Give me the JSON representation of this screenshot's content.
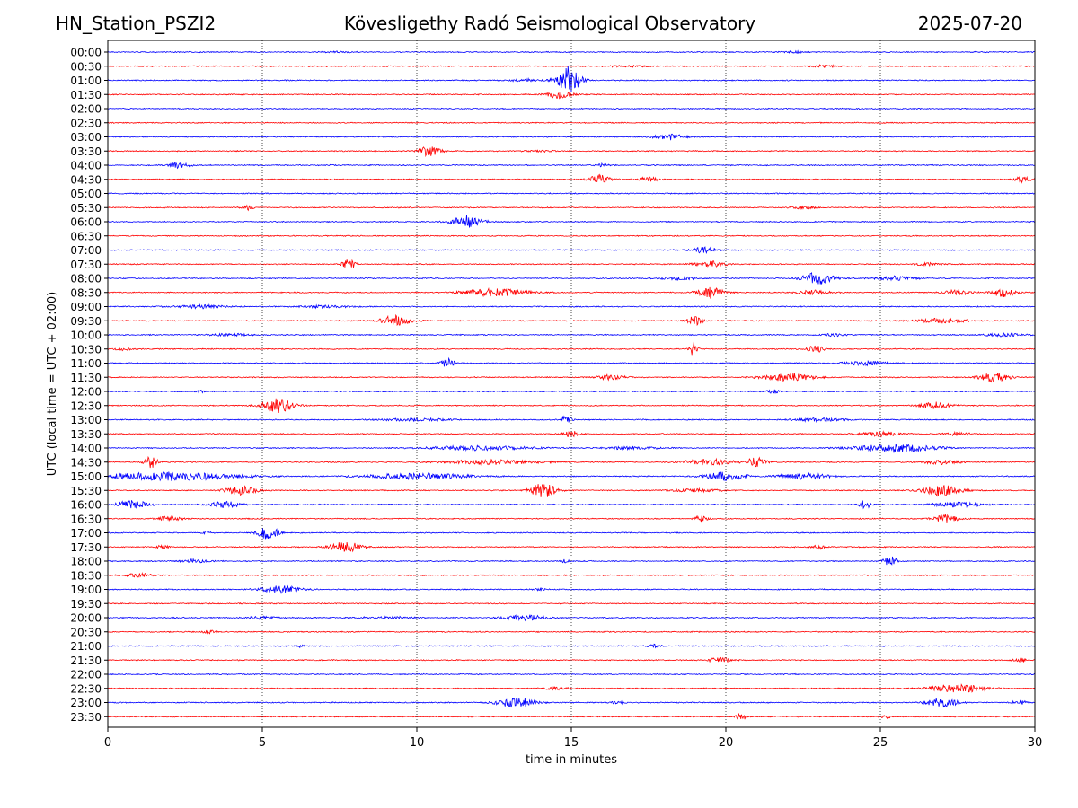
{
  "header": {
    "station": "HN_Station_PSZI2",
    "observatory": "Kövesligethy Radó Seismological Observatory",
    "date": "2025-07-20"
  },
  "chart_data": {
    "type": "line",
    "title": "Kövesligethy Radó Seismological Observatory",
    "xlabel": "time in minutes",
    "ylabel": "UTC (local time = UTC + 02:00)",
    "xlim": [
      0,
      30
    ],
    "xticks": [
      "0",
      "5",
      "10",
      "15",
      "20",
      "25",
      "30"
    ],
    "xtick_values": [
      0,
      5,
      10,
      15,
      20,
      25,
      30
    ],
    "vertical_gridlines": [
      5,
      10,
      15,
      20,
      25
    ],
    "grid": "vertical dotted",
    "colors": {
      "even_row": "#0000ff",
      "odd_row": "#ff0000"
    },
    "rows": [
      {
        "label": "00:00",
        "color": "blue",
        "events": [
          [
            22.2,
            0.8,
            0.06
          ],
          [
            7.5,
            1.0,
            0.04
          ]
        ]
      },
      {
        "label": "00:30",
        "color": "red",
        "events": [
          [
            23.2,
            1.0,
            0.08
          ],
          [
            16.8,
            1.5,
            0.05
          ]
        ]
      },
      {
        "label": "01:00",
        "color": "blue",
        "events": [
          [
            14.9,
            0.9,
            1.0
          ],
          [
            13.5,
            1.0,
            0.1
          ]
        ]
      },
      {
        "label": "01:30",
        "color": "red",
        "events": [
          [
            14.6,
            1.0,
            0.25
          ]
        ]
      },
      {
        "label": "02:00",
        "color": "blue",
        "events": []
      },
      {
        "label": "02:30",
        "color": "red",
        "events": []
      },
      {
        "label": "03:00",
        "color": "blue",
        "events": [
          [
            18.2,
            1.2,
            0.2
          ]
        ]
      },
      {
        "label": "03:30",
        "color": "red",
        "events": [
          [
            10.4,
            0.8,
            0.35
          ],
          [
            14.0,
            1.2,
            0.05
          ]
        ]
      },
      {
        "label": "04:00",
        "color": "blue",
        "events": [
          [
            2.3,
            0.8,
            0.2
          ],
          [
            16.0,
            0.5,
            0.1
          ]
        ]
      },
      {
        "label": "04:30",
        "color": "red",
        "events": [
          [
            15.9,
            0.8,
            0.3
          ],
          [
            17.5,
            0.8,
            0.15
          ],
          [
            29.6,
            0.6,
            0.2
          ]
        ]
      },
      {
        "label": "05:00",
        "color": "blue",
        "events": []
      },
      {
        "label": "05:30",
        "color": "red",
        "events": [
          [
            4.5,
            0.4,
            0.2
          ],
          [
            22.5,
            1.0,
            0.08
          ]
        ]
      },
      {
        "label": "06:00",
        "color": "blue",
        "events": [
          [
            11.6,
            1.2,
            0.45
          ]
        ]
      },
      {
        "label": "06:30",
        "color": "red",
        "events": []
      },
      {
        "label": "07:00",
        "color": "blue",
        "events": [
          [
            19.3,
            1.0,
            0.2
          ]
        ]
      },
      {
        "label": "07:30",
        "color": "red",
        "events": [
          [
            7.8,
            0.5,
            0.35
          ],
          [
            19.5,
            1.2,
            0.2
          ],
          [
            26.5,
            1.0,
            0.08
          ]
        ]
      },
      {
        "label": "08:00",
        "color": "blue",
        "events": [
          [
            23.0,
            1.2,
            0.45
          ],
          [
            25.5,
            1.5,
            0.15
          ],
          [
            18.5,
            1.5,
            0.1
          ]
        ]
      },
      {
        "label": "08:30",
        "color": "red",
        "events": [
          [
            12.5,
            2.5,
            0.25
          ],
          [
            19.5,
            1.0,
            0.35
          ],
          [
            22.8,
            1.2,
            0.15
          ],
          [
            27.5,
            1.0,
            0.2
          ],
          [
            29.0,
            1.0,
            0.3
          ]
        ]
      },
      {
        "label": "09:00",
        "color": "blue",
        "events": [
          [
            3.0,
            2.0,
            0.12
          ],
          [
            7.0,
            2.0,
            0.08
          ]
        ]
      },
      {
        "label": "09:30",
        "color": "red",
        "events": [
          [
            9.3,
            1.2,
            0.35
          ],
          [
            19.0,
            0.6,
            0.3
          ],
          [
            27.0,
            2.0,
            0.15
          ]
        ]
      },
      {
        "label": "10:00",
        "color": "blue",
        "events": [
          [
            4.0,
            1.5,
            0.08
          ],
          [
            23.5,
            1.0,
            0.08
          ],
          [
            29.0,
            1.5,
            0.1
          ]
        ]
      },
      {
        "label": "10:30",
        "color": "red",
        "events": [
          [
            18.95,
            0.3,
            0.5
          ],
          [
            22.9,
            0.6,
            0.25
          ],
          [
            0.5,
            0.6,
            0.1
          ]
        ]
      },
      {
        "label": "11:00",
        "color": "blue",
        "events": [
          [
            11.0,
            0.5,
            0.3
          ],
          [
            24.5,
            1.5,
            0.15
          ]
        ]
      },
      {
        "label": "11:30",
        "color": "red",
        "events": [
          [
            16.3,
            1.0,
            0.2
          ],
          [
            22.0,
            2.0,
            0.25
          ],
          [
            28.7,
            1.2,
            0.3
          ]
        ]
      },
      {
        "label": "12:00",
        "color": "blue",
        "events": [
          [
            21.5,
            0.5,
            0.15
          ],
          [
            3.0,
            0.4,
            0.08
          ]
        ]
      },
      {
        "label": "12:30",
        "color": "red",
        "events": [
          [
            5.5,
            1.2,
            0.5
          ],
          [
            26.8,
            1.2,
            0.25
          ]
        ]
      },
      {
        "label": "13:00",
        "color": "blue",
        "events": [
          [
            14.8,
            0.5,
            0.25
          ],
          [
            10.0,
            3.0,
            0.08
          ],
          [
            23.0,
            2.0,
            0.1
          ]
        ]
      },
      {
        "label": "13:30",
        "color": "red",
        "events": [
          [
            15.0,
            0.6,
            0.2
          ],
          [
            25.0,
            1.5,
            0.15
          ],
          [
            27.5,
            1.0,
            0.1
          ]
        ]
      },
      {
        "label": "14:00",
        "color": "blue",
        "events": [
          [
            12.0,
            4.0,
            0.15
          ],
          [
            25.5,
            3.0,
            0.3
          ],
          [
            17.0,
            2.0,
            0.1
          ]
        ]
      },
      {
        "label": "14:30",
        "color": "red",
        "events": [
          [
            1.4,
            0.5,
            0.4
          ],
          [
            12.5,
            4.0,
            0.15
          ],
          [
            19.5,
            2.0,
            0.2
          ],
          [
            21.0,
            0.8,
            0.3
          ],
          [
            27.0,
            1.5,
            0.15
          ]
        ]
      },
      {
        "label": "15:00",
        "color": "blue",
        "events": [
          [
            2.0,
            5.0,
            0.3
          ],
          [
            10.0,
            4.0,
            0.2
          ],
          [
            20.0,
            1.5,
            0.3
          ],
          [
            22.5,
            2.0,
            0.2
          ]
        ]
      },
      {
        "label": "15:30",
        "color": "red",
        "events": [
          [
            4.3,
            1.2,
            0.3
          ],
          [
            14.1,
            1.0,
            0.5
          ],
          [
            27.0,
            1.5,
            0.4
          ],
          [
            19.0,
            2.0,
            0.1
          ]
        ]
      },
      {
        "label": "16:00",
        "color": "blue",
        "events": [
          [
            0.8,
            1.2,
            0.3
          ],
          [
            3.8,
            1.2,
            0.2
          ],
          [
            24.5,
            0.4,
            0.35
          ],
          [
            27.5,
            2.0,
            0.15
          ]
        ]
      },
      {
        "label": "16:30",
        "color": "red",
        "events": [
          [
            2.0,
            1.0,
            0.15
          ],
          [
            19.2,
            0.5,
            0.2
          ],
          [
            27.1,
            1.0,
            0.25
          ]
        ]
      },
      {
        "label": "17:00",
        "color": "blue",
        "events": [
          [
            5.2,
            0.8,
            0.45
          ],
          [
            3.2,
            0.4,
            0.1
          ]
        ]
      },
      {
        "label": "17:30",
        "color": "red",
        "events": [
          [
            7.7,
            1.2,
            0.35
          ],
          [
            1.8,
            0.6,
            0.1
          ],
          [
            23.0,
            0.5,
            0.15
          ]
        ]
      },
      {
        "label": "18:00",
        "color": "blue",
        "events": [
          [
            2.8,
            1.0,
            0.12
          ],
          [
            25.3,
            0.6,
            0.35
          ],
          [
            14.8,
            0.3,
            0.1
          ]
        ]
      },
      {
        "label": "18:30",
        "color": "red",
        "events": [
          [
            1.0,
            1.0,
            0.15
          ]
        ]
      },
      {
        "label": "19:00",
        "color": "blue",
        "events": [
          [
            5.6,
            1.5,
            0.25
          ],
          [
            14.0,
            0.4,
            0.08
          ]
        ]
      },
      {
        "label": "19:30",
        "color": "red",
        "events": []
      },
      {
        "label": "20:00",
        "color": "blue",
        "events": [
          [
            13.5,
            1.5,
            0.2
          ],
          [
            9.0,
            2.0,
            0.08
          ],
          [
            5.0,
            1.0,
            0.1
          ]
        ]
      },
      {
        "label": "20:30",
        "color": "red",
        "events": [
          [
            3.3,
            0.5,
            0.12
          ]
        ]
      },
      {
        "label": "21:00",
        "color": "blue",
        "events": [
          [
            17.7,
            0.5,
            0.12
          ],
          [
            6.2,
            0.3,
            0.08
          ]
        ]
      },
      {
        "label": "21:30",
        "color": "red",
        "events": [
          [
            19.8,
            0.8,
            0.2
          ],
          [
            29.5,
            0.6,
            0.1
          ]
        ]
      },
      {
        "label": "22:00",
        "color": "blue",
        "events": []
      },
      {
        "label": "22:30",
        "color": "red",
        "events": [
          [
            27.5,
            2.0,
            0.3
          ],
          [
            14.5,
            1.0,
            0.08
          ]
        ]
      },
      {
        "label": "23:00",
        "color": "blue",
        "events": [
          [
            13.2,
            1.5,
            0.35
          ],
          [
            27.0,
            1.2,
            0.3
          ],
          [
            16.5,
            0.5,
            0.12
          ],
          [
            29.5,
            0.6,
            0.15
          ]
        ]
      },
      {
        "label": "23:30",
        "color": "red",
        "events": [
          [
            20.5,
            0.5,
            0.2
          ],
          [
            25.2,
            0.4,
            0.1
          ]
        ]
      }
    ]
  }
}
